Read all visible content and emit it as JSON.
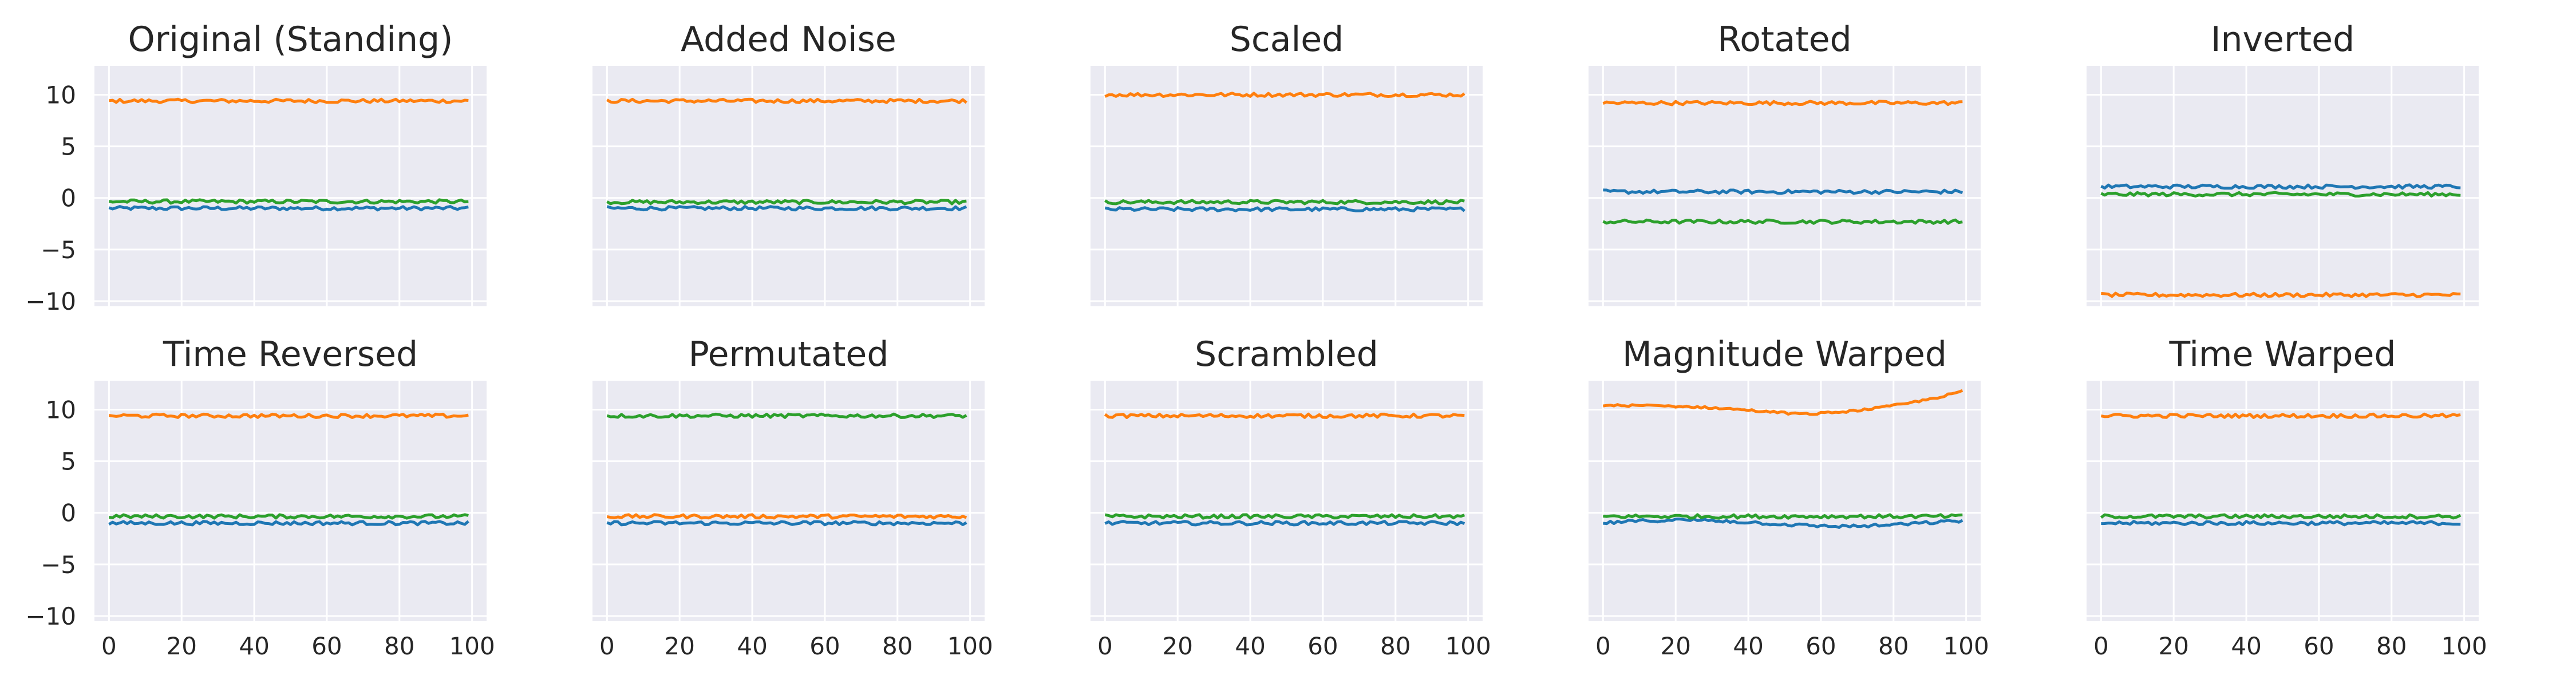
{
  "chart_data": {
    "type": "line",
    "layout": {
      "rows": 2,
      "cols": 5
    },
    "xlim": [
      -4,
      104
    ],
    "ylim": [
      -10.5,
      12.8
    ],
    "xticks": [
      0,
      20,
      40,
      60,
      80,
      100
    ],
    "yticks": [
      10,
      5,
      0,
      -5,
      -10
    ],
    "grid": true,
    "colors": [
      "#1f77b4",
      "#ff7f0e",
      "#2ca02c"
    ],
    "panels": [
      {
        "title": "Original (Standing)",
        "levels": [
          -1.0,
          9.4,
          -0.35
        ]
      },
      {
        "title": "Added Noise",
        "levels": [
          -1.0,
          9.4,
          -0.4
        ]
      },
      {
        "title": "Scaled",
        "levels": [
          -1.1,
          10.0,
          -0.4
        ]
      },
      {
        "title": "Rotated",
        "levels": [
          0.6,
          9.2,
          -2.3
        ]
      },
      {
        "title": "Inverted",
        "levels": [
          1.1,
          -9.4,
          0.35
        ]
      },
      {
        "title": "Time Reversed",
        "levels": [
          -1.0,
          9.4,
          -0.35
        ]
      },
      {
        "title": "Permutated",
        "levels": [
          -1.0,
          -0.35,
          9.4
        ]
      },
      {
        "title": "Scrambled",
        "levels": [
          -1.0,
          9.4,
          -0.35
        ]
      },
      {
        "title": "Magnitude Warped",
        "levels": [
          -1.0,
          10.5,
          -0.35
        ]
      },
      {
        "title": "Time Warped",
        "levels": [
          -1.0,
          9.4,
          -0.35
        ]
      }
    ]
  }
}
